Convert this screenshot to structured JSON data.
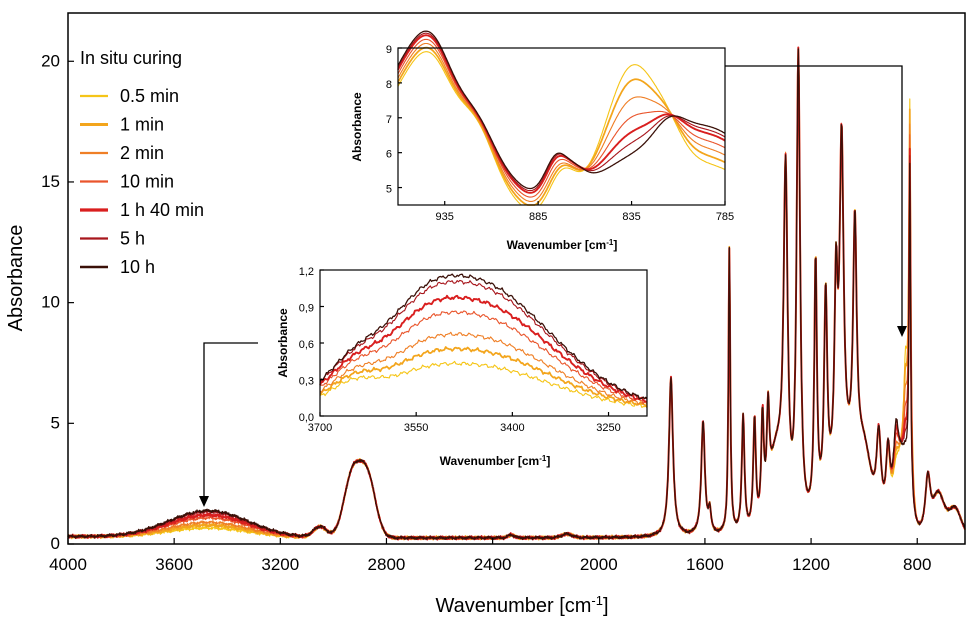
{
  "chart_data": {
    "type": "line",
    "xlabel": "Wavenumber [cm",
    "xlabel_sup": "-1",
    "xlabel_suffix": "]",
    "ylabel": "Absorbance",
    "xlim": [
      4000,
      620
    ],
    "ylim": [
      0,
      22
    ],
    "x_ticks": [
      4000,
      3600,
      3200,
      2800,
      2400,
      2000,
      1600,
      1200,
      800
    ],
    "y_ticks": [
      0,
      5,
      10,
      15,
      20
    ],
    "legend": {
      "title": "In situ curing",
      "position": "top-left",
      "entries": [
        "0.5 min",
        "1 min",
        "2 min",
        "10 min",
        "1 h 40 min",
        "5 h",
        "10 h"
      ]
    },
    "series": [
      {
        "name": "0.5 min",
        "color": "#f5c518",
        "width": 1.4,
        "oh": 0.38,
        "band880": 0.5,
        "band835": 3.9,
        "kbase": -0.6
      },
      {
        "name": "1 min",
        "color": "#f3a51c",
        "width": 2.2,
        "oh": 0.5,
        "band880": 0.8,
        "band835": 3.3,
        "kbase": -0.4
      },
      {
        "name": "2 min",
        "color": "#ef7f26",
        "width": 1.4,
        "oh": 0.62,
        "band880": 1.1,
        "band835": 2.6,
        "kbase": -0.2
      },
      {
        "name": "10 min",
        "color": "#e9552c",
        "width": 1.4,
        "oh": 0.8,
        "band880": 1.5,
        "band835": 1.9,
        "kbase": 0.0
      },
      {
        "name": "1 h 40 min",
        "color": "#d91f1f",
        "width": 2.4,
        "oh": 0.92,
        "band880": 1.8,
        "band835": 1.3,
        "kbase": 0.2
      },
      {
        "name": "5 h",
        "color": "#a8161c",
        "width": 1.4,
        "oh": 1.05,
        "band880": 2.0,
        "band835": 0.9,
        "kbase": 0.3
      },
      {
        "name": "10 h",
        "color": "#3a1008",
        "width": 1.6,
        "oh": 1.1,
        "band880": 2.1,
        "band835": 0.5,
        "kbase": 0.4
      }
    ],
    "insets": [
      {
        "id": "inset-top",
        "xlabel": "Wavenumber [cm",
        "xlabel_sup": "-1",
        "xlabel_suffix": "]",
        "ylabel": "Absorbance",
        "xlim": [
          960,
          785
        ],
        "ylim": [
          4.5,
          9
        ],
        "x_ticks": [
          935,
          885,
          835,
          785
        ],
        "y_ticks": [
          5,
          6,
          7,
          8,
          9
        ],
        "y_tick_labels": [
          "5",
          "6",
          "7",
          "8",
          "9"
        ]
      },
      {
        "id": "inset-mid",
        "xlabel": "Wavenumber [cm",
        "xlabel_sup": "-1",
        "xlabel_suffix": "]",
        "ylabel": "Absorbance",
        "xlim": [
          3700,
          3190
        ],
        "ylim": [
          0,
          1.2
        ],
        "x_ticks": [
          3700,
          3550,
          3400,
          3250
        ],
        "y_ticks": [
          0,
          0.3,
          0.6,
          0.9,
          1.2
        ],
        "y_tick_labels": [
          "0,0",
          "0,3",
          "0,6",
          "0,9",
          "1,2"
        ]
      }
    ]
  }
}
